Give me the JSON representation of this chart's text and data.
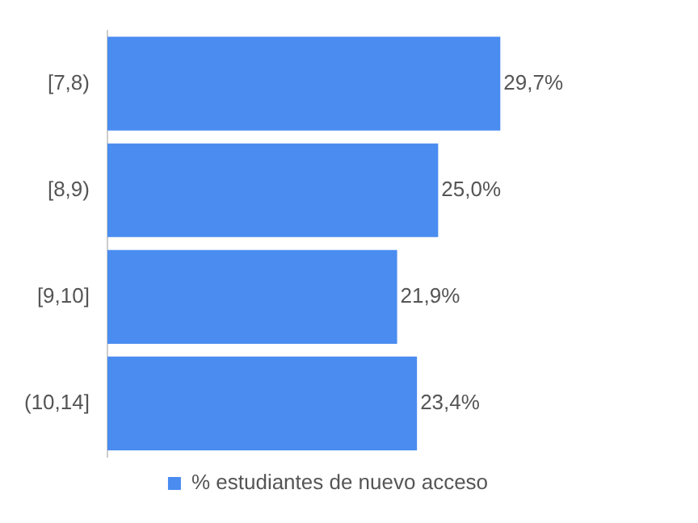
{
  "chart_data": {
    "type": "bar",
    "orientation": "horizontal",
    "categories": [
      "[7,8)",
      "[8,9)",
      "[9,10]",
      "(10,14]"
    ],
    "series": [
      {
        "name": "% estudiantes de nuevo acceso",
        "color": "#4a8cf0",
        "values": [
          29.7,
          25.0,
          21.9,
          23.4
        ],
        "value_labels": [
          "29,7%",
          "25,0%",
          "21,9%",
          "23,4%"
        ]
      }
    ],
    "legend": "bottom",
    "tick_labels": "y"
  }
}
